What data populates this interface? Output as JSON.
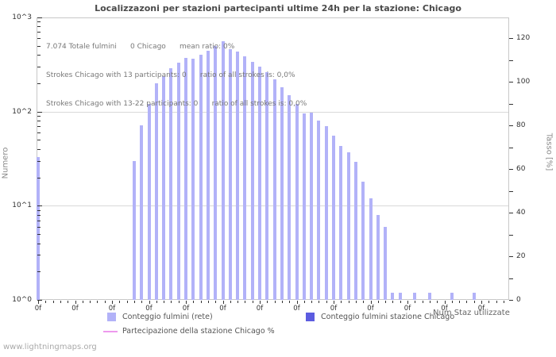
{
  "title": "Localizzazoni per stazioni partecipanti ultime 24h per la stazione: Chicago",
  "annotation": {
    "line1": "7.074 Totale fulmini      0 Chicago      mean ratio: 0%",
    "line2": "Strokes Chicago with 13 participants: 0      ratio of all strokes is: 0,0%",
    "line3": "Strokes Chicago with 13-22 participants: 0      ratio of all strokes is: 0,0%"
  },
  "axes": {
    "left_label": "Numero",
    "left_ticks": [
      "10^0",
      "10^1",
      "10^2",
      "10^3"
    ],
    "right_label": "Tasso [%]",
    "right_ticks": [
      "0",
      "20",
      "40",
      "60",
      "80",
      "100",
      "120"
    ],
    "x_tick_label": "0f",
    "x_axis_title": "Num Staz utilizzate"
  },
  "legend": [
    {
      "swatch": "light-square",
      "color": "#b2b2f8",
      "label": "Conteggio fulmini (rete)"
    },
    {
      "swatch": "dark-square",
      "color": "#5c5ce0",
      "label": "Conteggio fulmini stazione Chicago"
    },
    {
      "swatch": "line",
      "color": "#ee99ee",
      "label": "Partecipazione della stazione Chicago %"
    }
  ],
  "footer": "www.lightningmaps.org",
  "colors": {
    "bar": "#b2b2f8",
    "station_bar": "#5c5ce0",
    "participation_line": "#ee99ee",
    "grid": "#d9d9d9",
    "border": "#c8c8c8"
  },
  "chart_data": {
    "type": "bar",
    "title": "Localizzazoni per stazioni partecipanti ultime 24h per la stazione: Chicago",
    "xlabel": "Num Staz utilizzate",
    "ylabel_left": "Numero",
    "ylabel_right": "Tasso [%]",
    "y_scale_left": "log",
    "ylim_left": [
      1,
      1000
    ],
    "ylim_right": [
      0,
      130
    ],
    "grid": "horizontal-decades",
    "legend_position": "bottom",
    "num_slots": 64,
    "x_major_label_every": 5,
    "totals": {
      "total_strokes": 7074,
      "station_strokes": 0,
      "mean_ratio_pct": 0
    },
    "participation_pct": 0,
    "station_values": "all-zero",
    "bars": [
      [
        0,
        33
      ],
      [
        13,
        30
      ],
      [
        14,
        72
      ],
      [
        15,
        120
      ],
      [
        16,
        200
      ],
      [
        17,
        240
      ],
      [
        18,
        290
      ],
      [
        19,
        330
      ],
      [
        20,
        370
      ],
      [
        21,
        365
      ],
      [
        22,
        400
      ],
      [
        23,
        440
      ],
      [
        24,
        500
      ],
      [
        25,
        560
      ],
      [
        26,
        460
      ],
      [
        27,
        430
      ],
      [
        28,
        390
      ],
      [
        29,
        340
      ],
      [
        30,
        300
      ],
      [
        31,
        260
      ],
      [
        32,
        220
      ],
      [
        33,
        180
      ],
      [
        34,
        150
      ],
      [
        35,
        120
      ],
      [
        36,
        95
      ],
      [
        37,
        97
      ],
      [
        38,
        81
      ],
      [
        39,
        70
      ],
      [
        40,
        56
      ],
      [
        41,
        43
      ],
      [
        42,
        37
      ],
      [
        43,
        29
      ],
      [
        44,
        18
      ],
      [
        45,
        12
      ],
      [
        46,
        8
      ],
      [
        47,
        6
      ],
      [
        48,
        1.2
      ],
      [
        49,
        1.2
      ],
      [
        51,
        1.2
      ],
      [
        53,
        1.2
      ],
      [
        56,
        1.2
      ],
      [
        59,
        1.2
      ]
    ]
  }
}
